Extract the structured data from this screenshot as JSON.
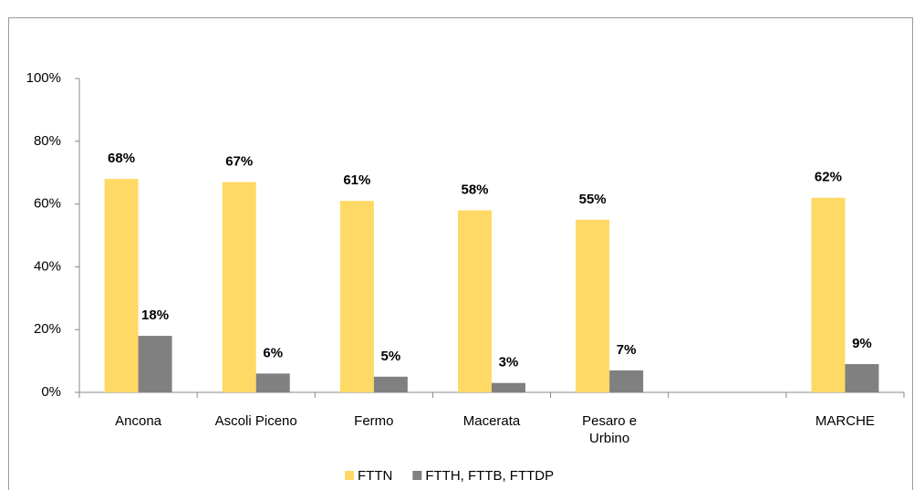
{
  "chart_data": {
    "type": "bar",
    "categories": [
      "Ancona",
      "Ascoli Piceno",
      "Fermo",
      "Macerata",
      "Pesaro e Urbino",
      null,
      "MARCHE"
    ],
    "series": [
      {
        "name": "FTTN",
        "color": "#ffd966",
        "values": [
          68,
          67,
          61,
          58,
          55,
          null,
          62
        ],
        "value_labels": [
          "68%",
          "67%",
          "61%",
          "58%",
          "55%",
          null,
          "62%"
        ]
      },
      {
        "name": "FTTH, FTTB, FTTDP",
        "color": "#808080",
        "values": [
          18,
          6,
          5,
          3,
          7,
          null,
          9
        ],
        "value_labels": [
          "18%",
          "6%",
          "5%",
          "3%",
          "7%",
          null,
          "9%"
        ]
      }
    ],
    "ylim": [
      0,
      100
    ],
    "yticks": [
      {
        "value": 0,
        "label": "0%"
      },
      {
        "value": 20,
        "label": "20%"
      },
      {
        "value": 40,
        "label": "40%"
      },
      {
        "value": 60,
        "label": "60%"
      },
      {
        "value": 80,
        "label": "80%"
      },
      {
        "value": 100,
        "label": "100%"
      }
    ],
    "legend": "bottom"
  }
}
